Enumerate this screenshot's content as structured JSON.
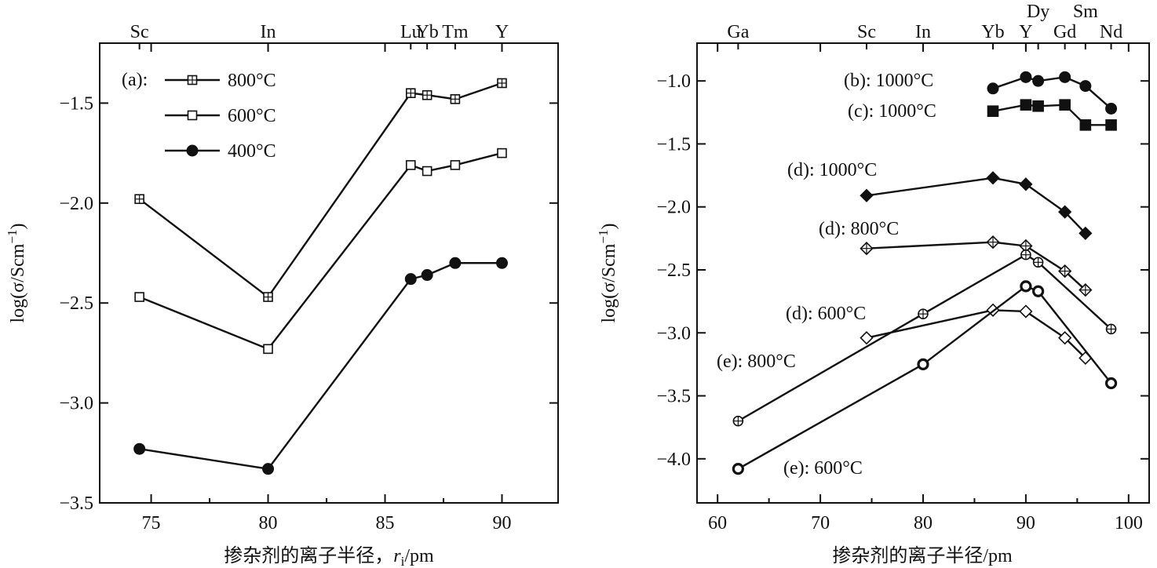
{
  "chart_data": [
    {
      "id": "a",
      "type": "line",
      "panel_label": "(a):",
      "xlabel": "掺杂剂的离子半径，",
      "xlabel_var": "r",
      "xlabel_sub": "i",
      "xlabel_unit": "/pm",
      "ylabel": "log(σ/Scm",
      "ylabel_sup": "−1",
      "ylabel_close": ")",
      "xlim": [
        72.8,
        92.4
      ],
      "ylim": [
        -3.5,
        -1.2
      ],
      "xticks": [
        75,
        80,
        85,
        90
      ],
      "xtick_labels": [
        "75",
        "80",
        "85",
        "90"
      ],
      "yticks": [
        -1.5,
        -2.0,
        -2.5,
        -3.0,
        -3.5
      ],
      "ytick_labels": [
        "−1.5",
        "−2.0",
        "−2.5",
        "−3.0",
        "−3.5"
      ],
      "top_labels": [
        {
          "text": "Sc",
          "x": 74.5
        },
        {
          "text": "In",
          "x": 80.0
        },
        {
          "text": "Lu",
          "x": 86.1
        },
        {
          "text": "Yb",
          "x": 86.8
        },
        {
          "text": "Tm",
          "x": 88.0
        },
        {
          "text": "Y",
          "x": 90.0
        }
      ],
      "legend": [
        {
          "label": "800°C",
          "marker": "square-plus"
        },
        {
          "label": "600°C",
          "marker": "square-open"
        },
        {
          "label": "400°C",
          "marker": "circle-filled"
        }
      ],
      "series": [
        {
          "name": "800°C",
          "marker": "square-plus",
          "x": [
            74.5,
            80.0,
            86.1,
            86.8,
            88.0,
            90.0
          ],
          "y": [
            -1.98,
            -2.47,
            -1.45,
            -1.46,
            -1.48,
            -1.4
          ]
        },
        {
          "name": "600°C",
          "marker": "square-open",
          "x": [
            74.5,
            80.0,
            86.1,
            86.8,
            88.0,
            90.0
          ],
          "y": [
            -2.47,
            -2.73,
            -1.81,
            -1.84,
            -1.81,
            -1.75
          ]
        },
        {
          "name": "400°C",
          "marker": "circle-filled",
          "x": [
            74.5,
            80.0,
            86.1,
            86.8,
            88.0,
            90.0
          ],
          "y": [
            -3.23,
            -3.33,
            -2.38,
            -2.36,
            -2.3,
            -2.3
          ]
        }
      ]
    },
    {
      "id": "b",
      "type": "line",
      "xlabel": "掺杂剂的离子半径/pm",
      "ylabel": "log(σ/Scm",
      "ylabel_sup": "−1",
      "ylabel_close": ")",
      "xlim": [
        58,
        102
      ],
      "ylim": [
        -4.35,
        -0.7
      ],
      "xticks": [
        60,
        70,
        80,
        90,
        100
      ],
      "xtick_labels": [
        "60",
        "70",
        "80",
        "90",
        "100"
      ],
      "yticks": [
        -1.0,
        -1.5,
        -2.0,
        -2.5,
        -3.0,
        -3.5,
        -4.0
      ],
      "ytick_labels": [
        "−1.0",
        "−1.5",
        "−2.0",
        "−2.5",
        "−3.0",
        "−3.5",
        "−4.0"
      ],
      "top_labels": [
        {
          "text": "Ga",
          "x": 62.0,
          "row": 0
        },
        {
          "text": "Sc",
          "x": 74.5,
          "row": 0
        },
        {
          "text": "In",
          "x": 80.0,
          "row": 0
        },
        {
          "text": "Yb",
          "x": 86.8,
          "row": 0
        },
        {
          "text": "Y",
          "x": 90.0,
          "row": 0
        },
        {
          "text": "Dy",
          "x": 91.2,
          "row": 1
        },
        {
          "text": "Gd",
          "x": 93.8,
          "row": 0
        },
        {
          "text": "Sm",
          "x": 95.8,
          "row": 1
        },
        {
          "text": "Nd",
          "x": 98.3,
          "row": 0
        }
      ],
      "series": [
        {
          "name": "(b):  1000°C",
          "marker": "circle-filled",
          "x": [
            86.8,
            90.0,
            91.2,
            93.8,
            95.8,
            98.3
          ],
          "y": [
            -1.06,
            -0.97,
            -1.0,
            -0.97,
            -1.04,
            -1.22
          ]
        },
        {
          "name": "(c):  1000°C",
          "marker": "square-filled",
          "x": [
            86.8,
            90.0,
            91.2,
            93.8,
            95.8,
            98.3
          ],
          "y": [
            -1.24,
            -1.19,
            -1.2,
            -1.19,
            -1.35,
            -1.35
          ]
        },
        {
          "name": "(d):  1000°C",
          "marker": "diamond-filled",
          "x": [
            74.5,
            86.8,
            90.0,
            93.8,
            95.8
          ],
          "y": [
            -1.91,
            -1.77,
            -1.82,
            -2.04,
            -2.21
          ]
        },
        {
          "name": "(d): 800°C",
          "marker": "diamond-plus",
          "x": [
            74.5,
            86.8,
            90.0,
            93.8,
            95.8
          ],
          "y": [
            -2.33,
            -2.28,
            -2.31,
            -2.51,
            -2.66
          ]
        },
        {
          "name": "(d):  600°C",
          "marker": "diamond-open",
          "x": [
            74.5,
            86.8,
            90.0,
            93.8,
            95.8
          ],
          "y": [
            -3.04,
            -2.82,
            -2.83,
            -3.04,
            -3.2
          ]
        },
        {
          "name": "(e):  800°C",
          "marker": "circle-plus",
          "x": [
            62.0,
            80.0,
            90.0,
            91.2,
            98.3
          ],
          "y": [
            -3.7,
            -2.85,
            -2.38,
            -2.44,
            -2.97
          ]
        },
        {
          "name": "(e): 600°C",
          "marker": "circle-thick",
          "x": [
            62.0,
            80.0,
            90.0,
            91.2,
            98.3
          ],
          "y": [
            -4.08,
            -3.25,
            -2.63,
            -2.67,
            -3.4
          ]
        }
      ]
    }
  ]
}
